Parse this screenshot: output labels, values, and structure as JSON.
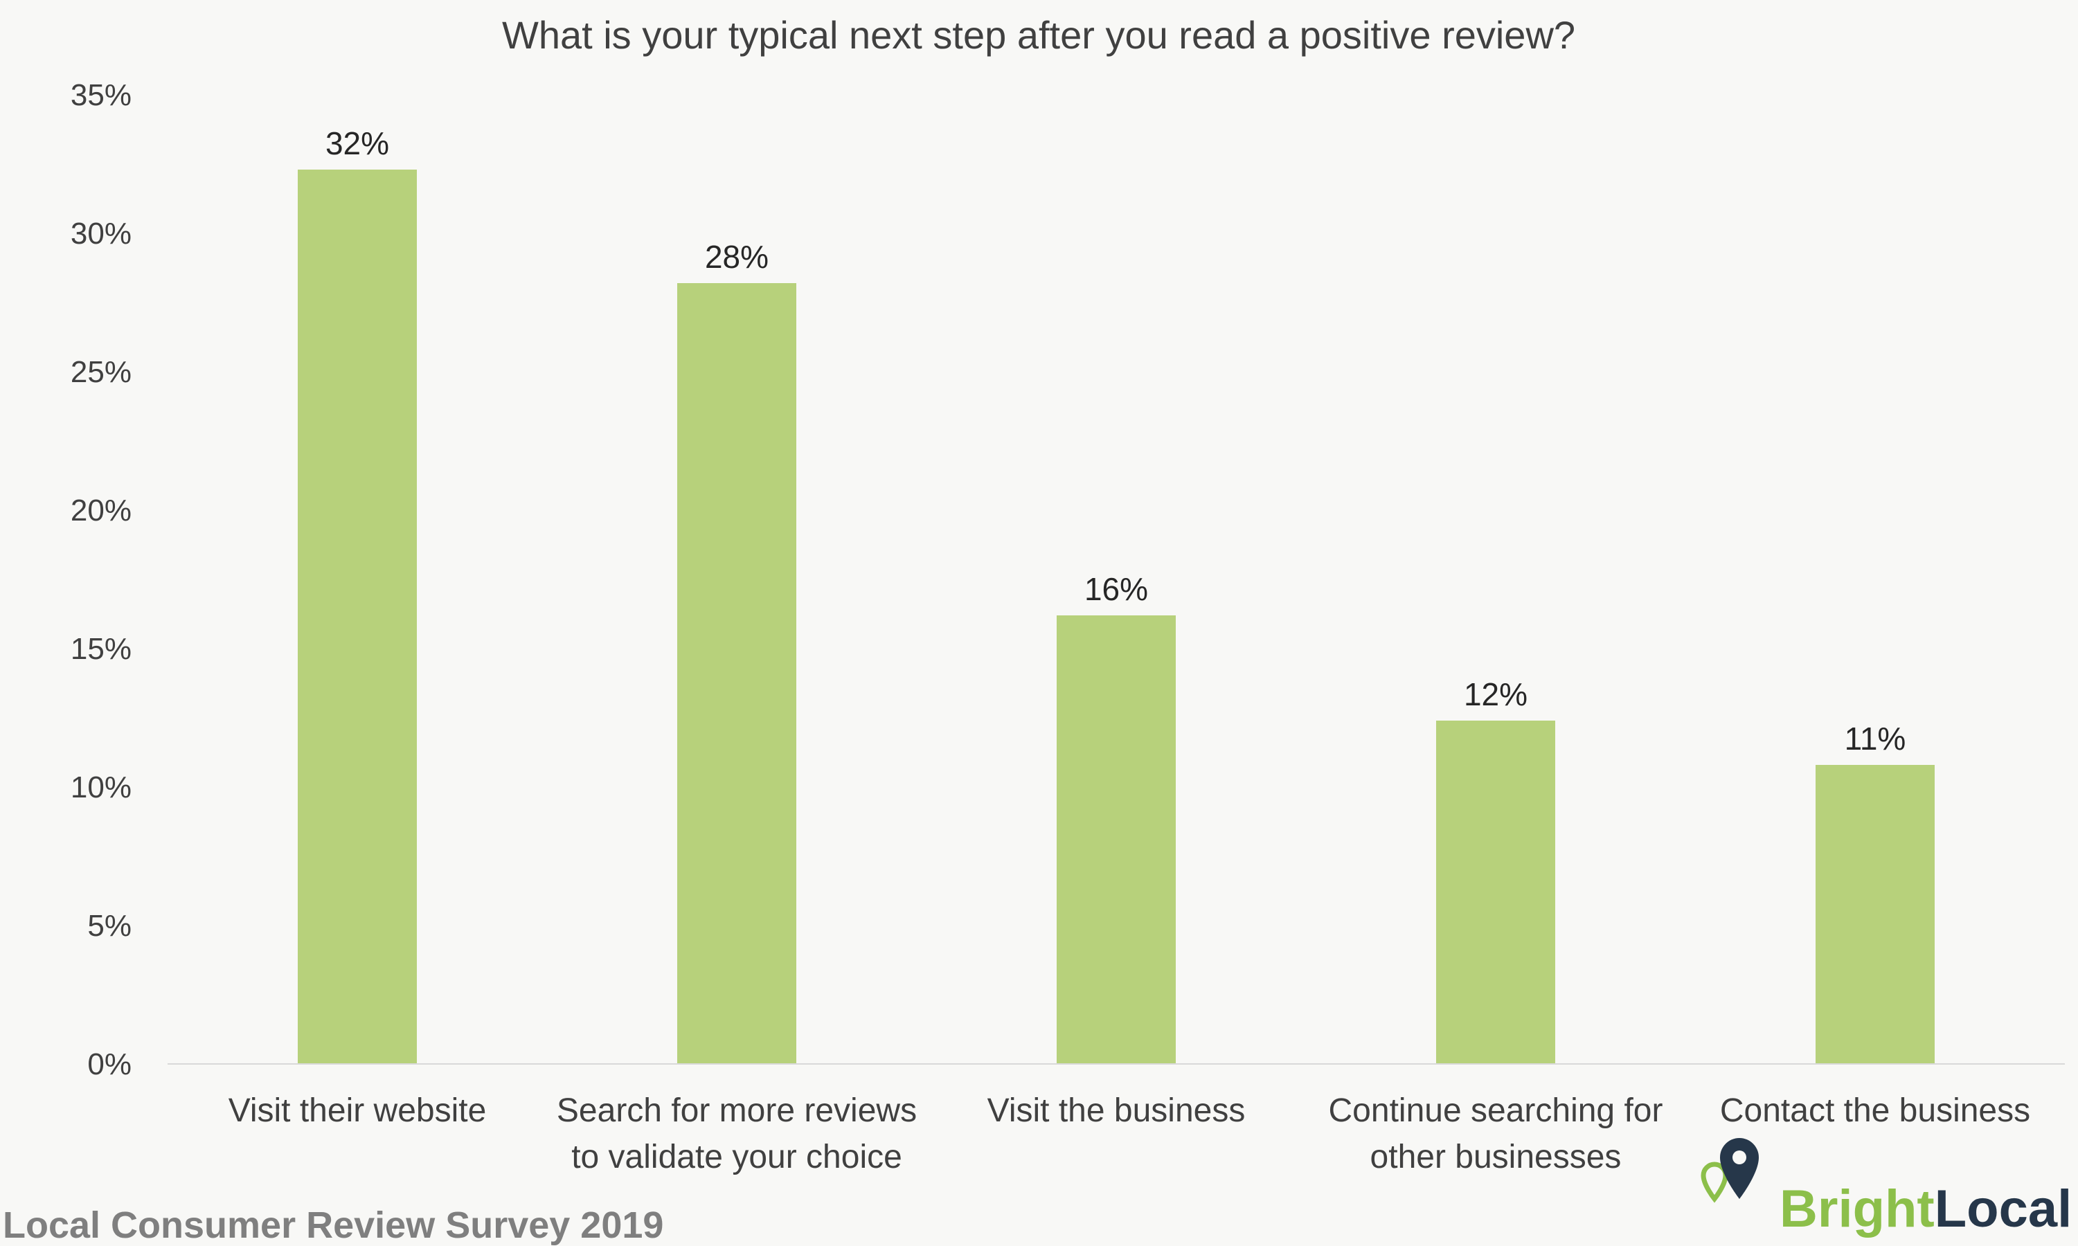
{
  "chart_data": {
    "type": "bar",
    "title": "What is your typical next step after you read a positive review?",
    "categories": [
      [
        "Visit their website"
      ],
      [
        "Search for more reviews",
        "to validate your choice"
      ],
      [
        "Visit the business"
      ],
      [
        "Continue searching for",
        "other businesses"
      ],
      [
        "Contact the business"
      ]
    ],
    "values": [
      32.3,
      28.2,
      16.2,
      12.4,
      10.8
    ],
    "data_labels": [
      "32%",
      "28%",
      "16%",
      "12%",
      "11%"
    ],
    "ylim": [
      0,
      35
    ],
    "yticks": [
      0,
      5,
      10,
      15,
      20,
      25,
      30,
      35
    ],
    "ytick_labels": [
      "0%",
      "5%",
      "10%",
      "15%",
      "20%",
      "25%",
      "30%",
      "35%"
    ],
    "xlabel": "",
    "ylabel": "",
    "grid": false,
    "legend": "none",
    "bar_color": "#b7d17b",
    "axis_color": "#d9d9d9"
  },
  "footer": {
    "survey": "Local Consumer Review Survey 2019"
  },
  "brand": {
    "part1": "Bright",
    "part2": "Local",
    "icon": "map-pin-icon",
    "color_green": "#8cbf4a",
    "color_navy": "#26374a"
  }
}
